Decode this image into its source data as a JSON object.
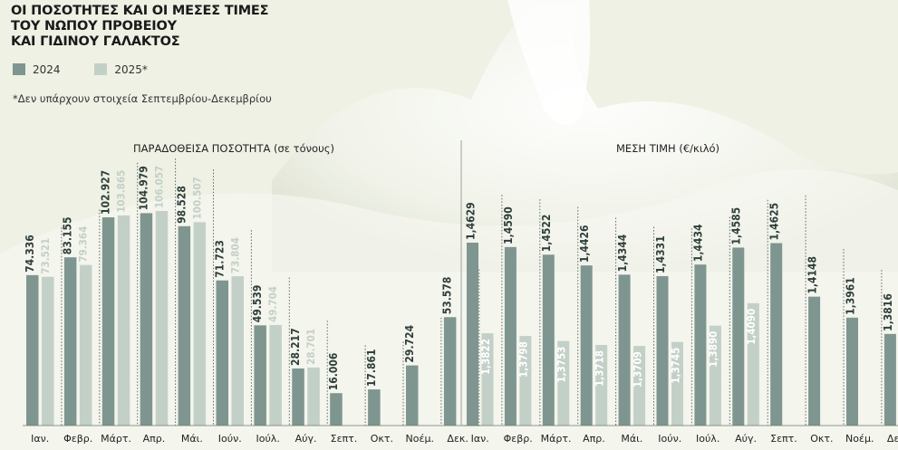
{
  "title_lines": [
    "ΟΙ ΠΟΣΟΤΗΤΕΣ ΚΑΙ ΟΙ ΜΕΣΕΣ ΤΙΜΕΣ",
    "ΤΟΥ ΝΩΠΟΥ ΠΡΟΒΕΙΟΥ",
    "ΚΑΙ ΓΙΔΙΝΟΥ ΓΑΛΑΚΤΟΣ"
  ],
  "legend": [
    {
      "label": "2024",
      "color": "#7f9590"
    },
    {
      "label": "2025*",
      "color": "#c3d0c8"
    }
  ],
  "note": "*Δεν υπάρχουν στοιχεία Σεπτεμβρίου-Δεκεμβρίου",
  "colors": {
    "bar_2024": "#7f9590",
    "bar_2025": "#c3d0c8",
    "label_2024": "#2f3f3c",
    "label_2025": "#c3d0c8"
  },
  "chart_data": [
    {
      "type": "bar",
      "title": "ΠΑΡΑΔΟΘΕΙΣΑ ΠΟΣΟΤΗΤΑ (σε τόνους)",
      "categories": [
        "Ιαν.",
        "Φεβρ.",
        "Μάρτ.",
        "Απρ.",
        "Μάι.",
        "Ιούν.",
        "Ιούλ.",
        "Αύγ.",
        "Σεπτ.",
        "Οκτ.",
        "Νοέμ.",
        "Δεκ."
      ],
      "series": [
        {
          "name": "2024",
          "values": [
            74.336,
            83.155,
            102.927,
            104.979,
            98.528,
            71.723,
            49.539,
            28.217,
            16.006,
            17.861,
            29.724,
            53.578
          ],
          "labels": [
            "74.336",
            "83.155",
            "102.927",
            "104.979",
            "98.528",
            "71.723",
            "49.539",
            "28.217",
            "16.006",
            "17.861",
            "29.724",
            "53.578"
          ]
        },
        {
          "name": "2025*",
          "values": [
            73.521,
            79.364,
            103.865,
            106.057,
            100.507,
            73.804,
            49.704,
            28.701,
            null,
            null,
            null,
            null
          ],
          "labels": [
            "73.521",
            "79.364",
            "103.865",
            "106.057",
            "100.507",
            "73.804",
            "49.704",
            "28.701",
            null,
            null,
            null,
            null
          ]
        }
      ]
    },
    {
      "type": "bar",
      "title": "ΜΕΣΗ ΤΙΜΗ (€/κιλό)",
      "categories": [
        "Ιαν.",
        "Φεβρ.",
        "Μάρτ.",
        "Απρ.",
        "Μάι.",
        "Ιούν.",
        "Ιούλ.",
        "Αύγ.",
        "Σεπτ.",
        "Οκτ.",
        "Νοέμ.",
        "Δεκ."
      ],
      "series": [
        {
          "name": "2024",
          "values": [
            1.4629,
            1.459,
            1.4522,
            1.4426,
            1.4344,
            1.4331,
            1.4434,
            1.4585,
            1.4625,
            1.4148,
            1.3961,
            1.3816
          ],
          "labels": [
            "1,4629",
            "1,4590",
            "1,4522",
            "1,4426",
            "1,4344",
            "1,4331",
            "1,4434",
            "1,4585",
            "1,4625",
            "1,4148",
            "1,3961",
            "1,3816"
          ]
        },
        {
          "name": "2025*",
          "values": [
            1.3822,
            1.3798,
            1.3753,
            1.3718,
            1.3709,
            1.3745,
            1.389,
            1.409,
            null,
            null,
            null,
            null
          ],
          "labels": [
            "1,3822",
            "1,3798",
            "1,3753",
            "1,3718",
            "1,3709",
            "1,3745",
            "1,3890",
            "1,4090",
            null,
            null,
            null,
            null
          ]
        }
      ]
    }
  ]
}
